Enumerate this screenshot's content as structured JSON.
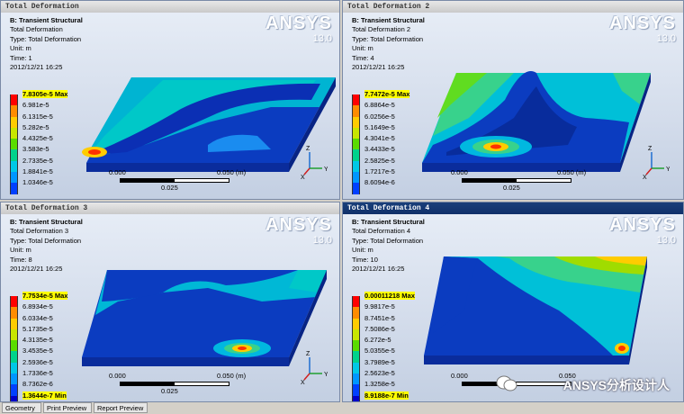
{
  "viewports": [
    {
      "title": "Total Deformation",
      "header": "B: Transient Structural",
      "lines": [
        "Total Deformation",
        "Type: Total Deformation",
        "Unit: m",
        "Time: 1",
        "2012/12/21 16:25"
      ],
      "legend": [
        "7.8305e-5 Max",
        "6.981e-5",
        "6.1315e-5",
        "5.282e-5",
        "4.4325e-5",
        "3.583e-5",
        "2.7335e-5",
        "1.8841e-5",
        "1.0346e-5"
      ],
      "scale": {
        "start": "0.000",
        "end": "0.050 (m)",
        "mid": "0.025"
      }
    },
    {
      "title": "Total Deformation 2",
      "header": "B: Transient Structural",
      "lines": [
        "Total Deformation 2",
        "Type: Total Deformation",
        "Unit: m",
        "Time: 4",
        "2012/12/21 16:25"
      ],
      "legend": [
        "7.7472e-5 Max",
        "6.8864e-5",
        "6.0256e-5",
        "5.1649e-5",
        "4.3041e-5",
        "3.4433e-5",
        "2.5825e-5",
        "1.7217e-5",
        "8.6094e-6"
      ],
      "scale": {
        "start": "0.000",
        "end": "0.050 (m)",
        "mid": "0.025"
      }
    },
    {
      "title": "Total Deformation 3",
      "header": "B: Transient Structural",
      "lines": [
        "Total Deformation 3",
        "Type: Total Deformation",
        "Unit: m",
        "Time: 8",
        "2012/12/21 16:25"
      ],
      "legend": [
        "7.7534e-5 Max",
        "6.8934e-5",
        "6.0334e-5",
        "5.1735e-5",
        "4.3135e-5",
        "3.4535e-5",
        "2.5936e-5",
        "1.7336e-5",
        "8.7362e-6",
        "1.3644e-7 Min"
      ],
      "scale": {
        "start": "0.000",
        "end": "0.050 (m)",
        "mid": "0.025"
      }
    },
    {
      "title": "Total Deformation 4",
      "header": "B: Transient Structural",
      "lines": [
        "Total Deformation 4",
        "Type: Total Deformation",
        "Unit: m",
        "Time: 10",
        "2012/12/21 16:25"
      ],
      "legend": [
        "0.00011218 Max",
        "9.9817e-5",
        "8.7451e-5",
        "7.5086e-5",
        "6.272e-5",
        "5.0355e-5",
        "3.7989e-5",
        "2.5623e-5",
        "1.3258e-5",
        "8.9188e-7 Min"
      ],
      "scale": {
        "start": "0.000",
        "end": "0.050",
        "mid": ""
      }
    }
  ],
  "brand": {
    "name": "ANSYS",
    "version": "13.0"
  },
  "axes": {
    "z": "Z",
    "y": "Y",
    "x": "X"
  },
  "legend_colors": [
    "#ff0000",
    "#ff8c00",
    "#ffcc00",
    "#c8e600",
    "#5adc00",
    "#00d28c",
    "#00c8e6",
    "#0096ff",
    "#0040ff",
    "#0000c8"
  ],
  "tabs": [
    "Geometry",
    "Print Preview",
    "Report Preview"
  ],
  "watermark": "ANSYS分析设计人"
}
